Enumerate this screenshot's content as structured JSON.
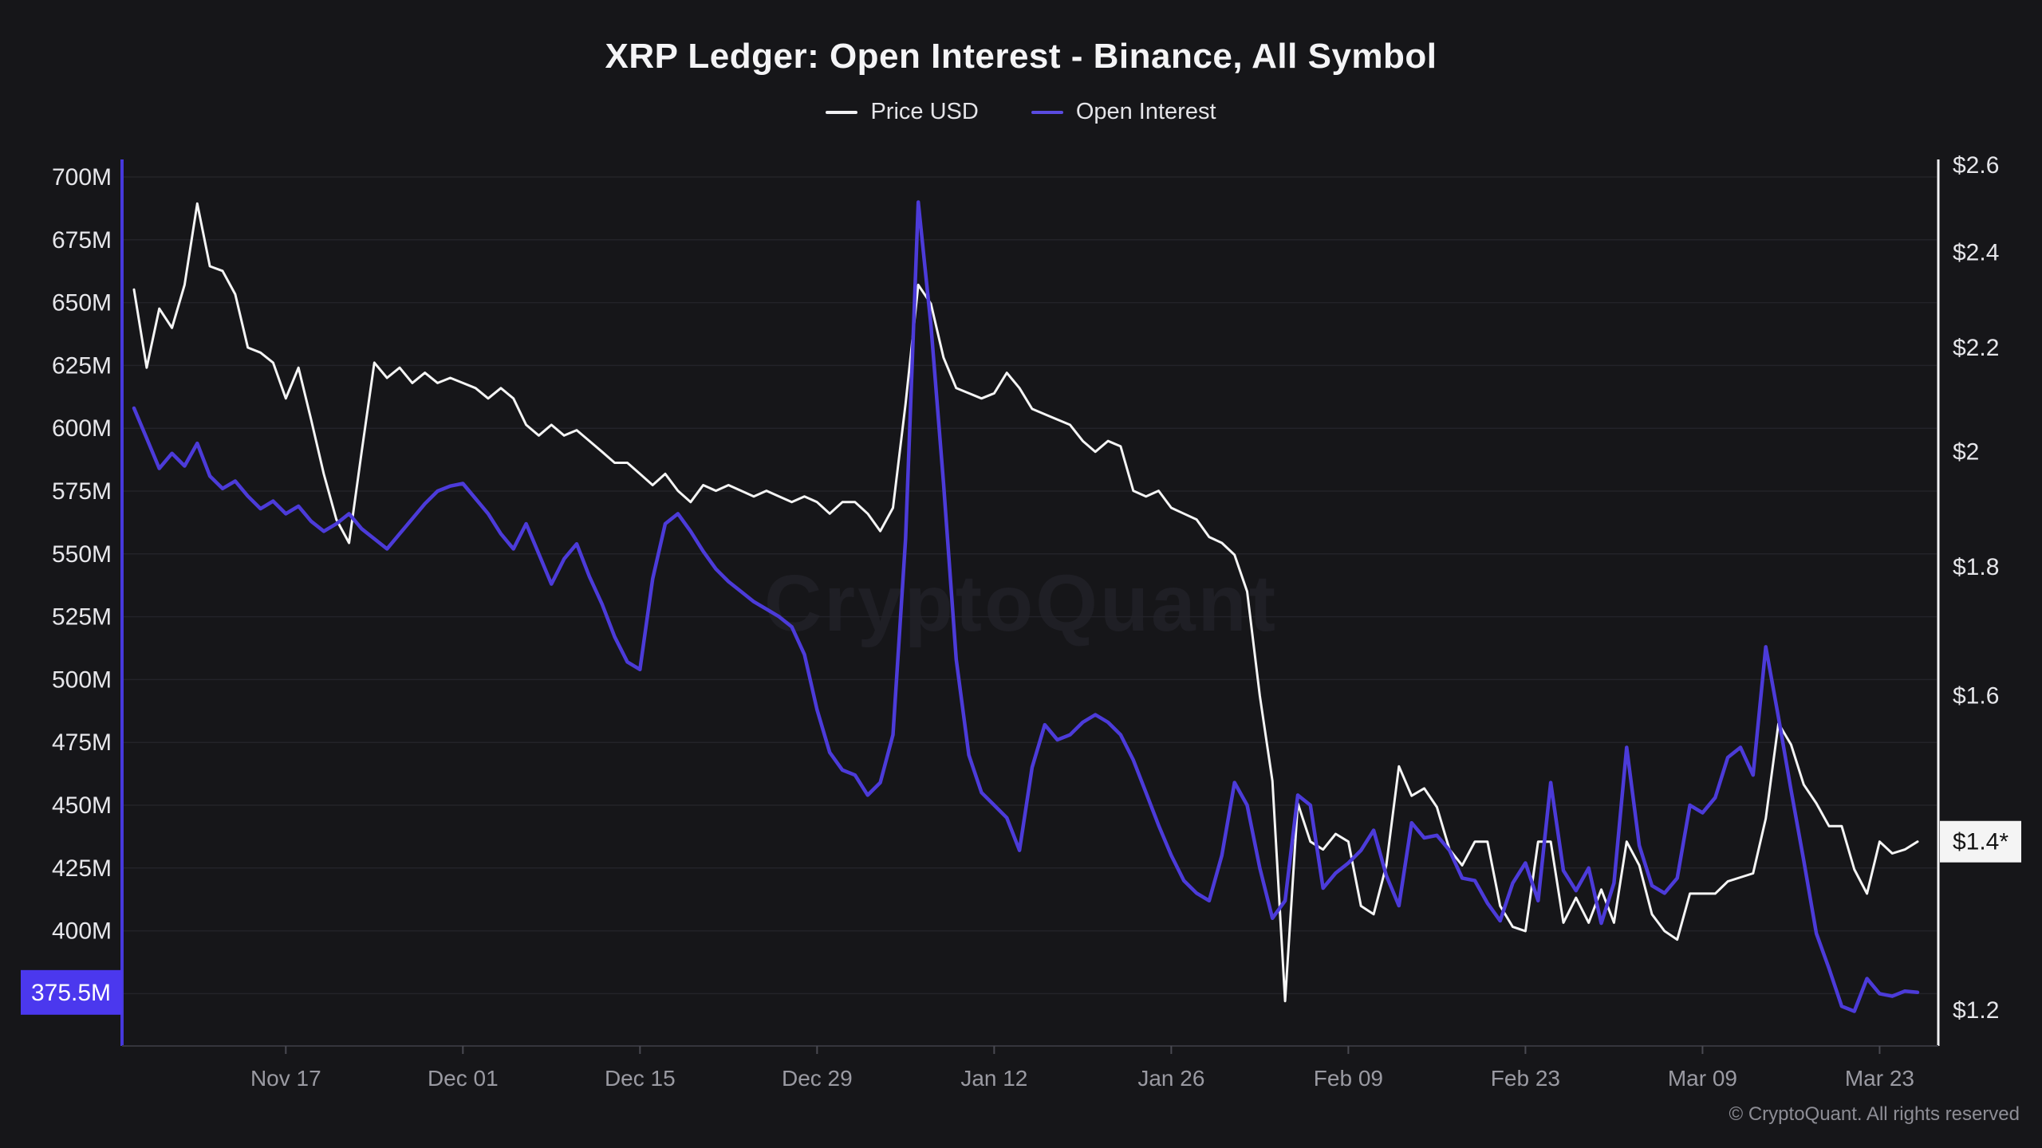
{
  "app": {
    "title": "XRP Ledger: Open Interest - Binance, All Symbol",
    "watermark": "CryptoQuant",
    "footer": "© CryptoQuant. All rights reserved"
  },
  "colors": {
    "background": "#161619",
    "price_line": "#f5f5f5",
    "oi_line": "#4c3bd9",
    "oi_axis_line": "#4638dc",
    "right_axis_line": "#f0f0f2",
    "grid": "#232329",
    "bottom_axis": "#35353c",
    "tick": "#4a4a52",
    "x_label": "#9a9aa2",
    "y_label": "#e6e6ea",
    "oi_badge_bg": "#4b38ee",
    "oi_badge_text": "#ffffff",
    "price_badge_bg": "#f4f4f4",
    "price_badge_text": "#141414",
    "watermark_text": "#1f1f25",
    "footer_text": "#8d8d95"
  },
  "legend": {
    "items": [
      {
        "label": "Price USD",
        "color": "#f0f0f2"
      },
      {
        "label": "Open Interest",
        "color": "#5a4be0"
      }
    ]
  },
  "chart_data": {
    "type": "line",
    "title": "XRP Ledger: Open Interest - Binance, All Symbol",
    "x_axis": {
      "tick_labels": [
        "Nov 17",
        "Dec 01",
        "Dec 15",
        "Dec 29",
        "Jan 12",
        "Jan 26",
        "Feb 09",
        "Feb 23",
        "Mar 09",
        "Mar 23"
      ],
      "tick_indices": [
        12,
        26,
        40,
        54,
        68,
        82,
        96,
        110,
        124,
        138
      ]
    },
    "left_axis": {
      "series": "Open Interest",
      "unit": "M",
      "tick_values": [
        700,
        675,
        650,
        625,
        600,
        575,
        550,
        525,
        500,
        475,
        450,
        425,
        400
      ],
      "tick_labels": [
        "700M",
        "675M",
        "650M",
        "625M",
        "600M",
        "575M",
        "550M",
        "525M",
        "500M",
        "475M",
        "450M",
        "425M",
        "400M"
      ],
      "extra_gridline_values": [
        375
      ],
      "badge": {
        "label": "375.5M",
        "value": 375.5
      }
    },
    "right_axis": {
      "series": "Price USD",
      "scale": "log",
      "tick_values": [
        2.6,
        2.4,
        2.2,
        2.0,
        1.8,
        1.6,
        1.2
      ],
      "tick_labels": [
        "$2.6",
        "$2.4",
        "$2.2",
        "$2",
        "$1.8",
        "$1.6",
        "$1.2"
      ],
      "badge": {
        "label": "$1.4*",
        "value": 1.4
      }
    },
    "dates": [
      "Nov 05",
      "Nov 06",
      "Nov 07",
      "Nov 08",
      "Nov 09",
      "Nov 10",
      "Nov 11",
      "Nov 12",
      "Nov 13",
      "Nov 14",
      "Nov 15",
      "Nov 16",
      "Nov 17",
      "Nov 18",
      "Nov 19",
      "Nov 20",
      "Nov 21",
      "Nov 22",
      "Nov 23",
      "Nov 24",
      "Nov 25",
      "Nov 26",
      "Nov 27",
      "Nov 28",
      "Nov 29",
      "Nov 30",
      "Dec 01",
      "Dec 02",
      "Dec 03",
      "Dec 04",
      "Dec 05",
      "Dec 06",
      "Dec 07",
      "Dec 08",
      "Dec 09",
      "Dec 10",
      "Dec 11",
      "Dec 12",
      "Dec 13",
      "Dec 14",
      "Dec 15",
      "Dec 16",
      "Dec 17",
      "Dec 18",
      "Dec 19",
      "Dec 20",
      "Dec 21",
      "Dec 22",
      "Dec 23",
      "Dec 24",
      "Dec 25",
      "Dec 26",
      "Dec 27",
      "Dec 28",
      "Dec 29",
      "Dec 30",
      "Dec 31",
      "Jan 01",
      "Jan 02",
      "Jan 03",
      "Jan 04",
      "Jan 05",
      "Jan 06",
      "Jan 07",
      "Jan 08",
      "Jan 09",
      "Jan 10",
      "Jan 11",
      "Jan 12",
      "Jan 13",
      "Jan 14",
      "Jan 15",
      "Jan 16",
      "Jan 17",
      "Jan 18",
      "Jan 19",
      "Jan 20",
      "Jan 21",
      "Jan 22",
      "Jan 23",
      "Jan 24",
      "Jan 25",
      "Jan 26",
      "Jan 27",
      "Jan 28",
      "Jan 29",
      "Jan 30",
      "Jan 31",
      "Feb 01",
      "Feb 02",
      "Feb 03",
      "Feb 04",
      "Feb 05",
      "Feb 06",
      "Feb 07",
      "Feb 08",
      "Feb 09",
      "Feb 10",
      "Feb 11",
      "Feb 12",
      "Feb 13",
      "Feb 14",
      "Feb 15",
      "Feb 16",
      "Feb 17",
      "Feb 18",
      "Feb 19",
      "Feb 20",
      "Feb 21",
      "Feb 22",
      "Feb 23",
      "Feb 24",
      "Feb 25",
      "Feb 26",
      "Feb 27",
      "Feb 28",
      "Mar 01",
      "Mar 02",
      "Mar 03",
      "Mar 04",
      "Mar 05",
      "Mar 06",
      "Mar 07",
      "Mar 08",
      "Mar 09",
      "Mar 10",
      "Mar 11",
      "Mar 12",
      "Mar 13",
      "Mar 14",
      "Mar 15",
      "Mar 16",
      "Mar 17",
      "Mar 18",
      "Mar 19",
      "Mar 20",
      "Mar 21",
      "Mar 22",
      "Mar 23",
      "Mar 24",
      "Mar 25",
      "Mar 26"
    ],
    "series": [
      {
        "name": "Price USD",
        "axis": "right",
        "color": "#f5f5f5",
        "values": [
          2.32,
          2.16,
          2.28,
          2.24,
          2.33,
          2.51,
          2.37,
          2.36,
          2.31,
          2.2,
          2.19,
          2.17,
          2.1,
          2.16,
          2.06,
          1.96,
          1.88,
          1.84,
          2.0,
          2.17,
          2.14,
          2.16,
          2.13,
          2.15,
          2.13,
          2.14,
          2.13,
          2.12,
          2.1,
          2.12,
          2.1,
          2.05,
          2.03,
          2.05,
          2.03,
          2.04,
          2.02,
          2.0,
          1.98,
          1.98,
          1.96,
          1.94,
          1.96,
          1.93,
          1.91,
          1.94,
          1.93,
          1.94,
          1.93,
          1.92,
          1.93,
          1.92,
          1.91,
          1.92,
          1.91,
          1.89,
          1.91,
          1.91,
          1.89,
          1.86,
          1.9,
          2.09,
          2.33,
          2.29,
          2.18,
          2.12,
          2.11,
          2.1,
          2.11,
          2.15,
          2.12,
          2.08,
          2.07,
          2.06,
          2.05,
          2.02,
          2.0,
          2.02,
          2.01,
          1.93,
          1.92,
          1.93,
          1.9,
          1.89,
          1.88,
          1.85,
          1.84,
          1.82,
          1.76,
          1.6,
          1.48,
          1.21,
          1.45,
          1.4,
          1.39,
          1.41,
          1.4,
          1.32,
          1.31,
          1.37,
          1.5,
          1.46,
          1.47,
          1.445,
          1.39,
          1.37,
          1.4,
          1.4,
          1.32,
          1.295,
          1.29,
          1.4,
          1.4,
          1.3,
          1.33,
          1.3,
          1.34,
          1.3,
          1.4,
          1.37,
          1.31,
          1.29,
          1.28,
          1.335,
          1.335,
          1.335,
          1.35,
          1.355,
          1.36,
          1.43,
          1.56,
          1.53,
          1.475,
          1.45,
          1.42,
          1.42,
          1.365,
          1.335,
          1.4,
          1.385,
          1.39,
          1.4
        ]
      },
      {
        "name": "Open Interest",
        "axis": "left",
        "color": "#4c3bd9",
        "values": [
          608,
          596,
          584,
          590,
          585,
          594,
          581,
          576,
          579,
          573,
          568,
          571,
          566,
          569,
          563,
          559,
          562,
          566,
          560,
          556,
          552,
          558,
          564,
          570,
          575,
          577,
          578,
          572,
          566,
          558,
          552,
          562,
          550,
          538,
          548,
          554,
          541,
          530,
          517,
          507,
          504,
          540,
          562,
          566,
          559,
          551,
          544,
          539,
          535,
          531,
          528,
          525,
          521,
          510,
          488,
          471,
          464,
          462,
          454,
          459,
          478,
          556,
          690,
          641,
          578,
          508,
          470,
          455,
          450,
          445,
          432,
          465,
          482,
          476,
          478,
          483,
          486,
          483,
          478,
          468,
          455,
          442,
          430,
          420,
          415,
          412,
          430,
          459,
          450,
          425,
          405,
          412,
          454,
          450,
          417,
          423,
          427,
          432,
          440,
          422,
          410,
          443,
          437,
          438,
          432,
          421,
          420,
          411,
          404,
          419,
          427,
          412,
          459,
          424,
          416,
          425,
          403,
          419,
          473,
          434,
          418,
          415,
          421,
          450,
          447,
          453,
          469,
          473,
          462,
          513,
          485,
          456,
          428,
          399,
          385,
          370,
          368,
          381,
          375,
          374,
          376,
          375.5
        ]
      }
    ]
  }
}
